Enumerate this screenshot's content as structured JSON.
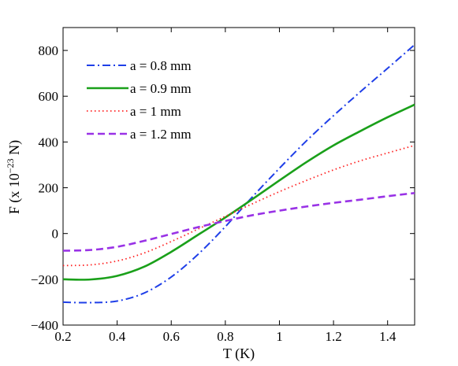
{
  "chart_data": {
    "type": "line",
    "title": "",
    "xlabel": "T (K)",
    "ylabel": {
      "prefix": "F  (x 10",
      "exponent": "−23",
      "suffix": " N)"
    },
    "xlim": [
      0.2,
      1.5
    ],
    "ylim": [
      -400,
      900
    ],
    "xticks": [
      0.2,
      0.4,
      0.6,
      0.8,
      1,
      1.2,
      1.4
    ],
    "xtick_labels": [
      "0.2",
      "0.4",
      "0.6",
      "0.8",
      "1",
      "1.2",
      "1.4"
    ],
    "yticks": [
      -400,
      -200,
      0,
      200,
      400,
      600,
      800
    ],
    "ytick_labels": [
      "−400",
      "−200",
      "0",
      "200",
      "400",
      "600",
      "800"
    ],
    "grid": false,
    "legend_position": "top-left",
    "series": [
      {
        "name": "a = 0.8 mm",
        "color": "#1f3fe8",
        "style": "dashdot",
        "x": [
          0.2,
          0.3,
          0.4,
          0.5,
          0.6,
          0.7,
          0.8,
          0.9,
          1.0,
          1.1,
          1.2,
          1.3,
          1.4,
          1.5
        ],
        "y": [
          -300,
          -302,
          -295,
          -260,
          -190,
          -90,
          30,
          160,
          285,
          405,
          515,
          620,
          722,
          825
        ]
      },
      {
        "name": "a = 0.9 mm",
        "color": "#1aa01a",
        "style": "solid",
        "x": [
          0.2,
          0.3,
          0.4,
          0.5,
          0.6,
          0.7,
          0.8,
          0.9,
          1.0,
          1.1,
          1.2,
          1.3,
          1.4,
          1.5
        ],
        "y": [
          -200,
          -201,
          -185,
          -145,
          -80,
          -5,
          70,
          150,
          232,
          312,
          385,
          448,
          508,
          563
        ]
      },
      {
        "name": "a = 1 mm",
        "color": "#ff2020",
        "style": "dotted",
        "x": [
          0.2,
          0.3,
          0.4,
          0.5,
          0.6,
          0.7,
          0.8,
          0.9,
          1.0,
          1.1,
          1.2,
          1.3,
          1.4,
          1.5
        ],
        "y": [
          -140,
          -137,
          -120,
          -85,
          -35,
          20,
          75,
          130,
          183,
          232,
          278,
          318,
          352,
          385
        ]
      },
      {
        "name": "a = 1.2 mm",
        "color": "#9932e6",
        "style": "dashed",
        "x": [
          0.2,
          0.3,
          0.4,
          0.5,
          0.6,
          0.7,
          0.8,
          0.9,
          1.0,
          1.1,
          1.2,
          1.3,
          1.4,
          1.5
        ],
        "y": [
          -75,
          -72,
          -58,
          -32,
          -2,
          28,
          55,
          80,
          100,
          118,
          134,
          148,
          163,
          177
        ]
      }
    ]
  }
}
